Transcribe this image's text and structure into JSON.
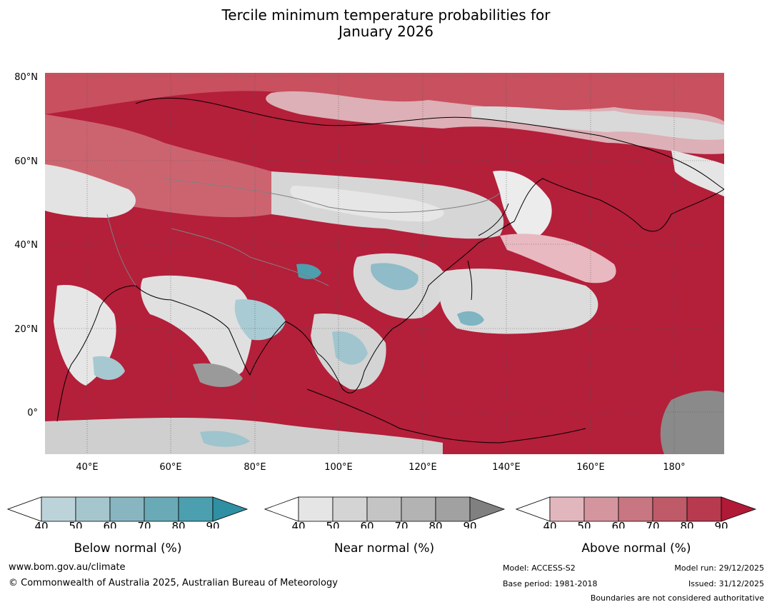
{
  "title": {
    "line1": "Tercile minimum temperature probabilities for",
    "line2": "January 2026"
  },
  "map": {
    "lat_labels": [
      "80°N",
      "60°N",
      "40°N",
      "20°N",
      "0°"
    ],
    "lon_labels": [
      "40°E",
      "60°E",
      "80°E",
      "100°E",
      "120°E",
      "140°E",
      "160°E",
      "180°"
    ],
    "colors": {
      "ocean_above": "#b41f3a",
      "land_above": "#c8495b",
      "near_normal_light": "#e4e4e4",
      "near_normal_mid": "#cfcfcf",
      "near_normal_dark": "#8a8a8a",
      "below_normal_light": "#b7d3dc",
      "below_normal_mid": "#7fb4c2",
      "below_normal_dark": "#3b9aab",
      "coastline": "#000000",
      "border": "#808080"
    }
  },
  "colorbars": [
    {
      "name": "below-normal",
      "label": "Below normal (%)",
      "ticks": [
        "40",
        "50",
        "60",
        "70",
        "80",
        "90"
      ],
      "colors": [
        "#bdd3da",
        "#a6c6cd",
        "#88b5c0",
        "#6aaab6",
        "#4c9fae",
        "#2f8fa3"
      ]
    },
    {
      "name": "near-normal",
      "label": "Near normal (%)",
      "ticks": [
        "40",
        "50",
        "60",
        "70",
        "80",
        "90"
      ],
      "colors": [
        "#e5e5e5",
        "#d4d4d4",
        "#c4c4c4",
        "#b3b3b3",
        "#a1a1a1",
        "#808080"
      ]
    },
    {
      "name": "above-normal",
      "label": "Above normal (%)",
      "ticks": [
        "40",
        "50",
        "60",
        "70",
        "80",
        "90"
      ],
      "colors": [
        "#e2b6bd",
        "#d4959e",
        "#c87681",
        "#bf5a68",
        "#b73a4f",
        "#b01a36"
      ]
    }
  ],
  "footer": {
    "website": "www.bom.gov.au/climate",
    "copyright": "© Commonwealth of Australia 2025, Australian Bureau of Meteorology",
    "model": "Model: ACCESS-S2",
    "base_period": "Base period: 1981-2018",
    "model_run": "Model run: 29/12/2025",
    "issued": "Issued: 31/12/2025",
    "disclaimer": "Boundaries are not considered authoritative"
  }
}
